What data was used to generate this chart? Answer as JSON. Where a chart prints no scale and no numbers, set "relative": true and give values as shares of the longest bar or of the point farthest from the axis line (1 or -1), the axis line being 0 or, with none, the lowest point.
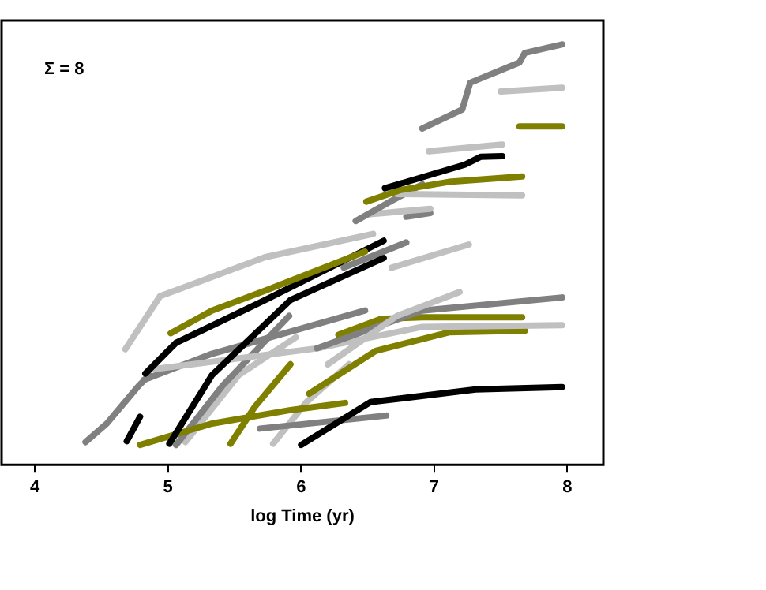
{
  "chart_data": {
    "type": "line",
    "xlabel": "log Time (yr)",
    "annotations": [
      "Σ = 8"
    ],
    "relative": true,
    "xlim": [
      3.75,
      8.27
    ],
    "xticks": [
      4,
      5,
      6,
      7,
      8
    ],
    "tick_labels": "x",
    "marker": "none",
    "line_style": "solid",
    "series": [
      {
        "color": "#808080",
        "x": [
          6.91,
          7.21,
          7.27,
          7.64,
          7.68,
          7.96
        ],
        "values": [
          0.8,
          0.845,
          0.909,
          0.957,
          0.98,
          1
        ]
      },
      {
        "color": "#c0c0c0",
        "x": [
          7.5,
          7.96
        ],
        "values": [
          0.888,
          0.897
        ]
      },
      {
        "color": "#808000",
        "x": [
          7.64,
          7.96
        ],
        "values": [
          0.805,
          0.805
        ]
      },
      {
        "color": "#c0c0c0",
        "x": [
          6.96,
          7.51
        ],
        "values": [
          0.746,
          0.762
        ]
      },
      {
        "color": "#000000",
        "x": [
          6.63,
          7.23,
          7.35,
          7.51
        ],
        "values": [
          0.658,
          0.714,
          0.733,
          0.734
        ]
      },
      {
        "color": "#808000",
        "x": [
          6.49,
          6.75,
          7.11,
          7.66
        ],
        "values": [
          0.626,
          0.654,
          0.673,
          0.686
        ]
      },
      {
        "color": "#c0c0c0",
        "x": [
          6.72,
          7.66
        ],
        "values": [
          0.644,
          0.641
        ]
      },
      {
        "color": "#808080",
        "x": [
          6.41,
          6.68,
          6.91
        ],
        "values": [
          0.58,
          0.628,
          0.667
        ]
      },
      {
        "color": "#c0c0c0",
        "x": [
          6.52,
          6.97
        ],
        "values": [
          0.596,
          0.609
        ]
      },
      {
        "color": "#808080",
        "x": [
          6.79,
          6.97
        ],
        "values": [
          0.59,
          0.599
        ]
      },
      {
        "color": "#c0c0c0",
        "x": [
          4.68,
          4.94,
          5.73,
          6.54
        ],
        "values": [
          0.275,
          0.401,
          0.494,
          0.549
        ]
      },
      {
        "color": "#808000",
        "x": [
          5.02,
          5.33,
          5.73,
          6.48
        ],
        "values": [
          0.313,
          0.367,
          0.414,
          0.507
        ]
      },
      {
        "color": "#000000",
        "x": [
          4.83,
          5.06,
          5.73,
          6.62
        ],
        "values": [
          0.217,
          0.29,
          0.392,
          0.533
        ]
      },
      {
        "color": "#000000",
        "x": [
          5.01,
          5.33,
          5.92,
          6.62
        ],
        "values": [
          0.05,
          0.213,
          0.392,
          0.492
        ]
      },
      {
        "color": "#808080",
        "x": [
          6.32,
          6.79
        ],
        "values": [
          0.469,
          0.529
        ]
      },
      {
        "color": "#c0c0c0",
        "x": [
          6.68,
          7.26
        ],
        "values": [
          0.469,
          0.524
        ]
      },
      {
        "color": "#c0c0c0",
        "x": [
          6.2,
          6.72,
          7.19
        ],
        "values": [
          0.239,
          0.354,
          0.411
        ]
      },
      {
        "color": "#808080",
        "x": [
          6.12,
          6.91,
          7.96
        ],
        "values": [
          0.277,
          0.367,
          0.398
        ]
      },
      {
        "color": "#808000",
        "x": [
          6.28,
          6.6,
          6.91,
          7.66
        ],
        "values": [
          0.309,
          0.347,
          0.351,
          0.351
        ]
      },
      {
        "color": "#c0c0c0",
        "x": [
          4.86,
          6.12,
          6.91,
          7.96
        ],
        "values": [
          0.226,
          0.277,
          0.328,
          0.332
        ]
      },
      {
        "color": "#808000",
        "x": [
          6.06,
          6.56,
          7.11,
          7.68
        ],
        "values": [
          0.169,
          0.271,
          0.315,
          0.319
        ]
      },
      {
        "color": "#000000",
        "x": [
          6,
          6.52,
          7.31,
          7.96
        ],
        "values": [
          0.047,
          0.149,
          0.179,
          0.185
        ]
      },
      {
        "color": "#808000",
        "x": [
          4.79,
          5.33,
          5.92,
          6.33
        ],
        "values": [
          0.047,
          0.098,
          0.13,
          0.147
        ]
      },
      {
        "color": "#808080",
        "x": [
          5.69,
          6.64
        ],
        "values": [
          0.086,
          0.117
        ]
      },
      {
        "color": "#808080",
        "x": [
          4.38,
          4.54,
          4.78,
          4.86
        ],
        "values": [
          0.054,
          0.098,
          0.188,
          0.213
        ]
      },
      {
        "color": "#000000",
        "x": [
          4.69,
          4.79
        ],
        "values": [
          0.056,
          0.114
        ]
      },
      {
        "color": "#808080",
        "x": [
          5.06,
          5.41,
          5.91
        ],
        "values": [
          0.047,
          0.188,
          0.354
        ]
      },
      {
        "color": "#c0c0c0",
        "x": [
          5.13,
          5.53,
          5.96
        ],
        "values": [
          0.054,
          0.213,
          0.303
        ]
      },
      {
        "color": "#808000",
        "x": [
          5.47,
          5.65,
          5.92
        ],
        "values": [
          0.05,
          0.137,
          0.239
        ]
      },
      {
        "color": "#c0c0c0",
        "x": [
          5.79,
          6.04,
          6.36
        ],
        "values": [
          0.05,
          0.149,
          0.239
        ]
      },
      {
        "color": "#808080",
        "x": [
          4.82,
          5.33,
          6.48
        ],
        "values": [
          0.202,
          0.264,
          0.367
        ]
      }
    ]
  }
}
